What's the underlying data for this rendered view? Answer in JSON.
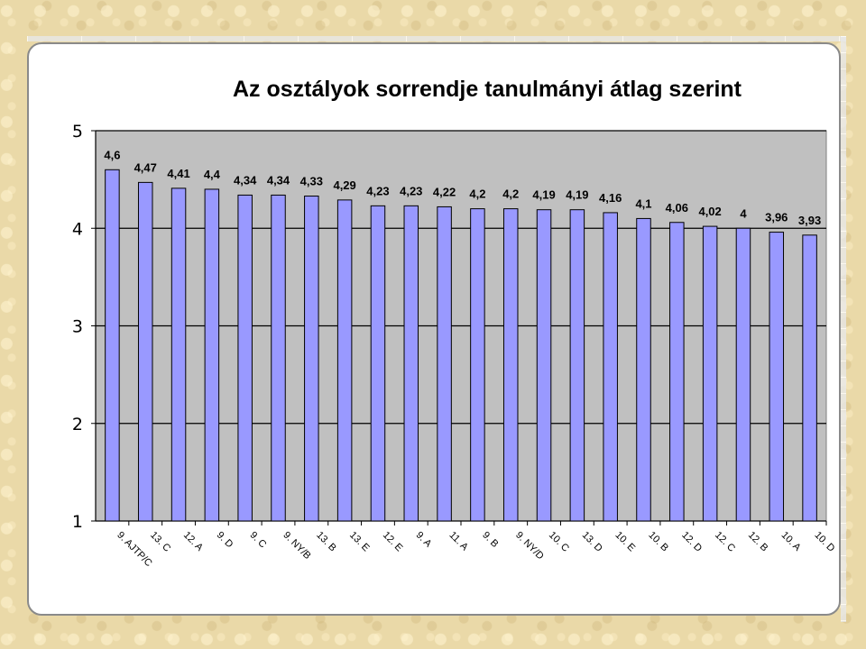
{
  "chart_data": {
    "type": "bar",
    "title": "Az osztályok sorrendje tanulmányi átlag szerint",
    "xlabel": "",
    "ylabel": "",
    "ylim": [
      1,
      5
    ],
    "yticks": [
      "1",
      "2",
      "3",
      "4",
      "5"
    ],
    "grid": true,
    "legend": "none",
    "categories": [
      "9. AJTP/C",
      "13. C",
      "12. A",
      "9. D",
      "9. C",
      "9. NY/B",
      "13. B",
      "13. E",
      "12. E",
      "9. A",
      "11. A",
      "9. B",
      "9. NY/D",
      "10. C",
      "13. D",
      "10. E",
      "10. B",
      "12. D",
      "12. C",
      "12. B",
      "10. A",
      "10. D"
    ],
    "values": [
      4.6,
      4.47,
      4.41,
      4.4,
      4.34,
      4.34,
      4.33,
      4.29,
      4.23,
      4.23,
      4.22,
      4.2,
      4.2,
      4.19,
      4.19,
      4.16,
      4.1,
      4.06,
      4.02,
      4,
      3.96,
      3.93
    ],
    "value_labels": [
      "4,6",
      "4,47",
      "4,41",
      "4,4",
      "4,34",
      "4,34",
      "4,33",
      "4,29",
      "4,23",
      "4,23",
      "4,22",
      "4,2",
      "4,2",
      "4,19",
      "4,19",
      "4,16",
      "4,1",
      "4,06",
      "4,02",
      "4",
      "3,96",
      "3,93"
    ],
    "colors": {
      "bar": "#9999ff",
      "bar_stroke": "#000000",
      "plot_background": "#c0c0c0",
      "gridline": "#000000"
    }
  }
}
